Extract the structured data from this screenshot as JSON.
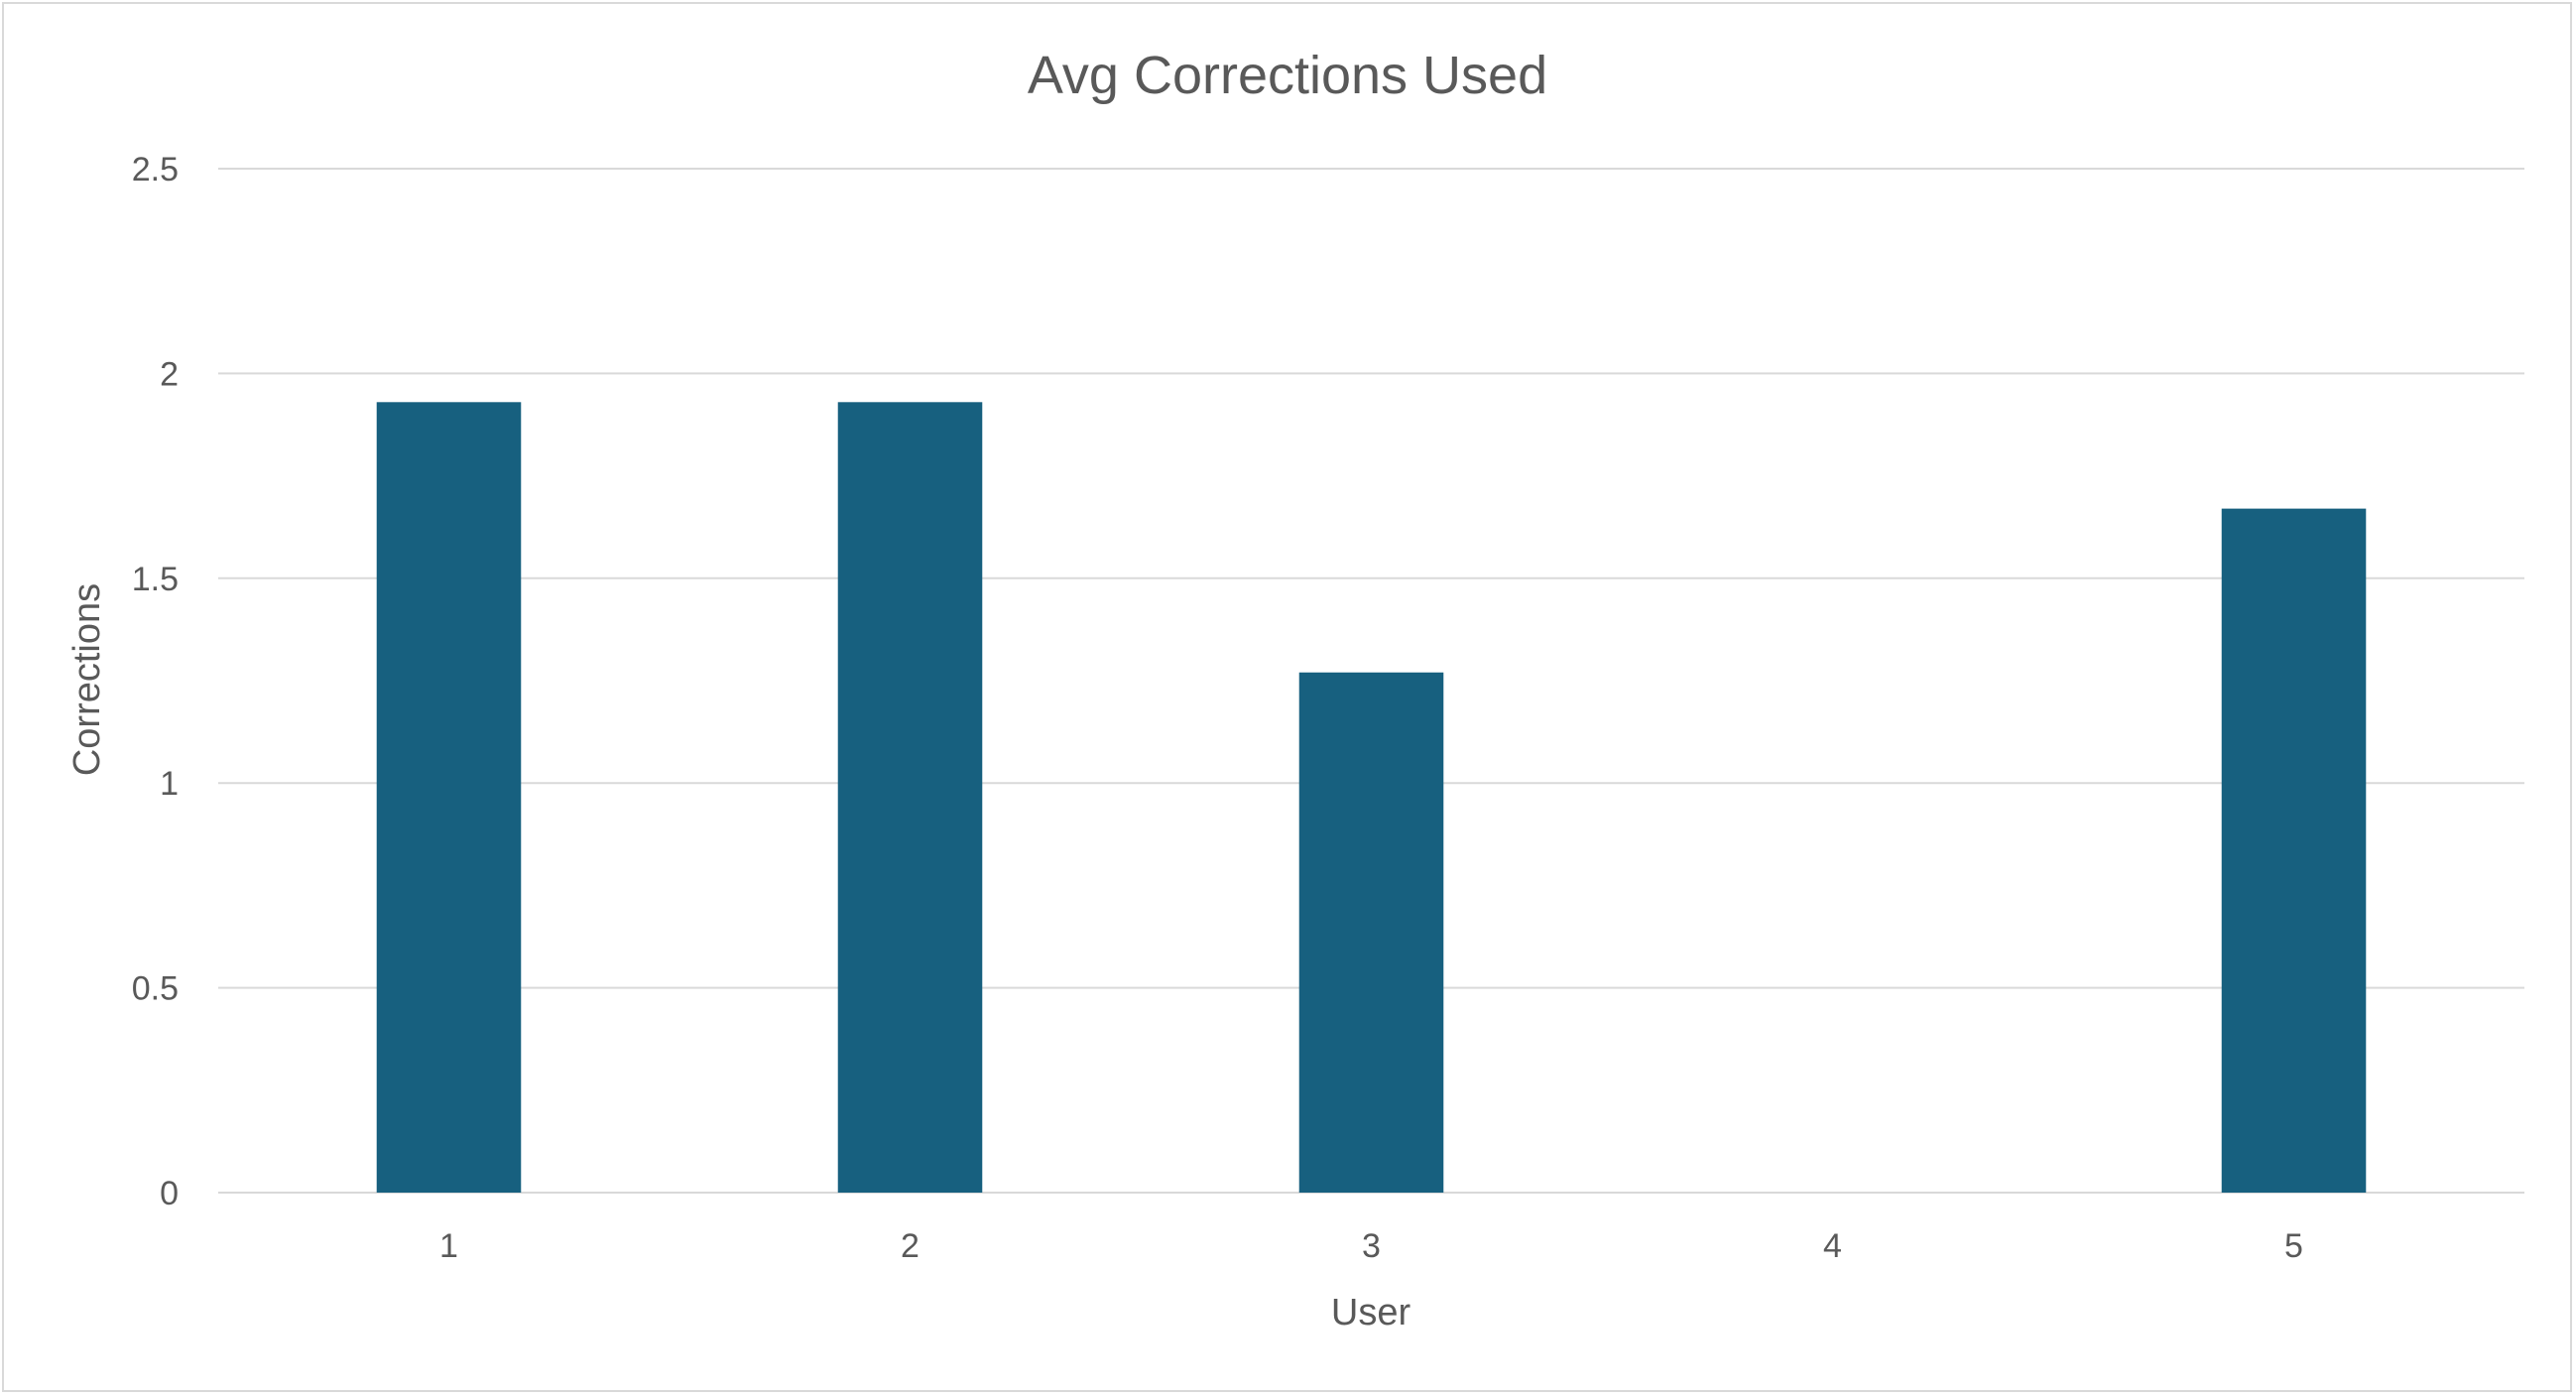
{
  "chart_data": {
    "type": "bar",
    "title": "Avg Corrections Used",
    "xlabel": "User",
    "ylabel": "Corrections",
    "categories": [
      "1",
      "2",
      "3",
      "4",
      "5"
    ],
    "values": [
      1.93,
      1.93,
      1.27,
      0,
      1.67
    ],
    "ylim": [
      0,
      2.5
    ],
    "yticks": [
      "0",
      "0.5",
      "1",
      "1.5",
      "2",
      "2.5"
    ],
    "ytick_values": [
      0,
      0.5,
      1,
      1.5,
      2,
      2.5
    ],
    "grid": true,
    "legend": "none",
    "bar_color": "#17607F"
  }
}
